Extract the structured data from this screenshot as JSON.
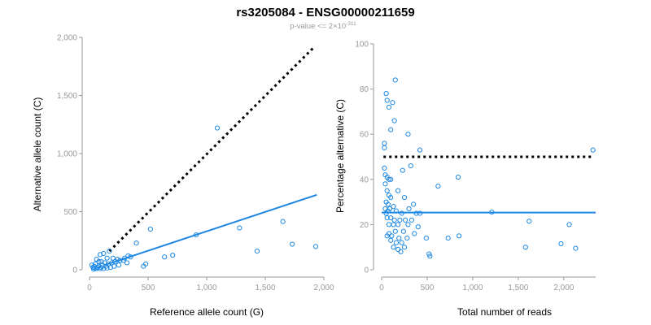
{
  "figure": {
    "title": "rs3205084 - ENSG00000211659",
    "subtitle_prefix": "p-value <= 2×10",
    "subtitle_exponent": "-311"
  },
  "colors": {
    "points": "#1e88e5",
    "fit_line": "#1e88e5",
    "reference_line": "#000000",
    "axes": "#999999"
  },
  "chart_data": [
    {
      "type": "scatter",
      "xlabel": "Reference allele count (G)",
      "ylabel": "Alternative allele count (C)",
      "xlim": [
        0,
        2000
      ],
      "ylim": [
        0,
        2000
      ],
      "x_ticks": [
        0,
        500,
        1000,
        1500,
        2000
      ],
      "x_tick_labels": [
        "0",
        "500",
        "1,000",
        "1,500",
        "2,000"
      ],
      "y_ticks": [
        0,
        500,
        1000,
        1500,
        2000
      ],
      "y_tick_labels": [
        "0",
        "500",
        "1,000",
        "1,500",
        "2,000"
      ],
      "grid": false,
      "reference_line": {
        "style": "dotted",
        "x": [
          170,
          1920
        ],
        "y": [
          160,
          1920
        ]
      },
      "fit_line": {
        "style": "solid",
        "x": [
          130,
          1940
        ],
        "y": [
          40,
          645
        ]
      },
      "points": [
        [
          1090,
          1220
        ],
        [
          910,
          300
        ],
        [
          1650,
          415
        ],
        [
          1280,
          360
        ],
        [
          1430,
          160
        ],
        [
          1730,
          220
        ],
        [
          1930,
          200
        ],
        [
          520,
          350
        ],
        [
          400,
          230
        ],
        [
          460,
          30
        ],
        [
          480,
          50
        ],
        [
          640,
          110
        ],
        [
          710,
          125
        ],
        [
          350,
          110
        ],
        [
          290,
          80
        ],
        [
          120,
          140
        ],
        [
          150,
          100
        ],
        [
          170,
          160
        ],
        [
          200,
          100
        ],
        [
          50,
          50
        ],
        [
          60,
          90
        ],
        [
          80,
          70
        ],
        [
          90,
          130
        ],
        [
          100,
          70
        ],
        [
          110,
          40
        ],
        [
          130,
          60
        ],
        [
          140,
          30
        ],
        [
          30,
          20
        ],
        [
          40,
          30
        ],
        [
          20,
          40
        ],
        [
          70,
          20
        ],
        [
          90,
          10
        ],
        [
          160,
          50
        ],
        [
          190,
          60
        ],
        [
          220,
          70
        ],
        [
          240,
          90
        ],
        [
          260,
          80
        ],
        [
          300,
          100
        ],
        [
          320,
          60
        ],
        [
          330,
          120
        ],
        [
          250,
          40
        ],
        [
          210,
          30
        ],
        [
          180,
          20
        ],
        [
          150,
          15
        ],
        [
          120,
          10
        ],
        [
          100,
          20
        ],
        [
          80,
          30
        ],
        [
          60,
          10
        ],
        [
          45,
          15
        ],
        [
          35,
          5
        ]
      ]
    },
    {
      "type": "scatter",
      "xlabel": "Total number of reads",
      "ylabel": "Percentage alternative (C)",
      "xlim": [
        0,
        2350
      ],
      "ylim": [
        0,
        100
      ],
      "x_ticks": [
        0,
        500,
        1000,
        1500,
        2000
      ],
      "x_tick_labels": [
        "0",
        "500",
        "1,000",
        "1,500",
        "2,000"
      ],
      "y_ticks": [
        0,
        20,
        40,
        60,
        80,
        100
      ],
      "y_tick_labels": [
        "0",
        "20",
        "40",
        "60",
        "80",
        "100"
      ],
      "grid": false,
      "reference_line": {
        "style": "dotted",
        "y": 50,
        "x": [
          20,
          2300
        ]
      },
      "fit_line": {
        "style": "solid",
        "y": 25.3,
        "x": [
          0,
          2350
        ]
      },
      "points": [
        [
          150,
          84
        ],
        [
          50,
          78
        ],
        [
          60,
          75
        ],
        [
          120,
          74
        ],
        [
          80,
          72
        ],
        [
          140,
          66
        ],
        [
          100,
          62
        ],
        [
          290,
          60
        ],
        [
          30,
          56
        ],
        [
          30,
          54
        ],
        [
          420,
          53
        ],
        [
          2320,
          53
        ],
        [
          320,
          46
        ],
        [
          30,
          45
        ],
        [
          230,
          44
        ],
        [
          40,
          42
        ],
        [
          60,
          41
        ],
        [
          840,
          41
        ],
        [
          80,
          40
        ],
        [
          100,
          40
        ],
        [
          40,
          38
        ],
        [
          620,
          37
        ],
        [
          180,
          35
        ],
        [
          60,
          35
        ],
        [
          80,
          33
        ],
        [
          100,
          32
        ],
        [
          250,
          32
        ],
        [
          50,
          30
        ],
        [
          70,
          29
        ],
        [
          350,
          29
        ],
        [
          130,
          28
        ],
        [
          40,
          27
        ],
        [
          90,
          27
        ],
        [
          300,
          27
        ],
        [
          70,
          26
        ],
        [
          160,
          26
        ],
        [
          1210,
          25.5
        ],
        [
          50,
          25
        ],
        [
          220,
          25
        ],
        [
          380,
          25
        ],
        [
          420,
          25
        ],
        [
          60,
          23
        ],
        [
          100,
          23
        ],
        [
          140,
          22
        ],
        [
          200,
          22
        ],
        [
          260,
          22
        ],
        [
          330,
          22
        ],
        [
          1620,
          21.5
        ],
        [
          80,
          20
        ],
        [
          130,
          20
        ],
        [
          180,
          20
        ],
        [
          290,
          20
        ],
        [
          2060,
          20
        ],
        [
          400,
          19
        ],
        [
          150,
          17
        ],
        [
          240,
          17
        ],
        [
          80,
          16
        ],
        [
          360,
          16
        ],
        [
          60,
          15
        ],
        [
          110,
          15
        ],
        [
          850,
          15
        ],
        [
          190,
          14
        ],
        [
          280,
          14
        ],
        [
          490,
          14
        ],
        [
          730,
          14
        ],
        [
          100,
          13
        ],
        [
          160,
          12
        ],
        [
          220,
          12
        ],
        [
          130,
          10
        ],
        [
          250,
          10
        ],
        [
          1970,
          11.5
        ],
        [
          1580,
          10
        ],
        [
          2130,
          9.5
        ],
        [
          180,
          9
        ],
        [
          210,
          8
        ],
        [
          520,
          7
        ],
        [
          530,
          6
        ]
      ]
    }
  ]
}
